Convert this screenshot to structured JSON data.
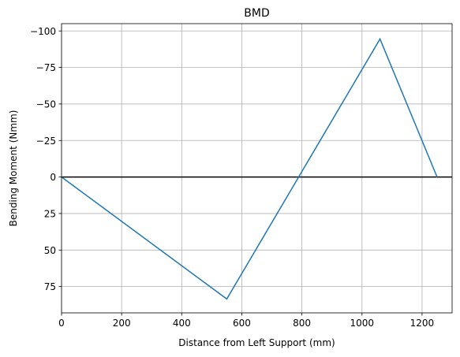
{
  "chart_data": {
    "type": "line",
    "title": "BMD",
    "xlabel": "Distance from Left Support (mm)",
    "ylabel": "Bending Moment (Nmm)",
    "xlim": [
      0,
      1300
    ],
    "ylim": [
      -105,
      93
    ],
    "y_inverted": true,
    "grid": true,
    "xticks": [
      0,
      200,
      400,
      600,
      800,
      1000,
      1200
    ],
    "yticks": [
      -100,
      -75,
      -50,
      -25,
      0,
      25,
      50,
      75
    ],
    "xtick_labels": [
      "0",
      "200",
      "400",
      "600",
      "800",
      "1000",
      "1200"
    ],
    "ytick_labels": [
      "−100",
      "−75",
      "−50",
      "−25",
      "0",
      "25",
      "50",
      "75"
    ],
    "zero_line": {
      "y": 0,
      "color": "#000000"
    },
    "series": [
      {
        "color": "#1f77b4",
        "x": [
          0,
          550,
          1060,
          1250
        ],
        "y": [
          0,
          83.5,
          -94.5,
          0
        ]
      }
    ]
  }
}
